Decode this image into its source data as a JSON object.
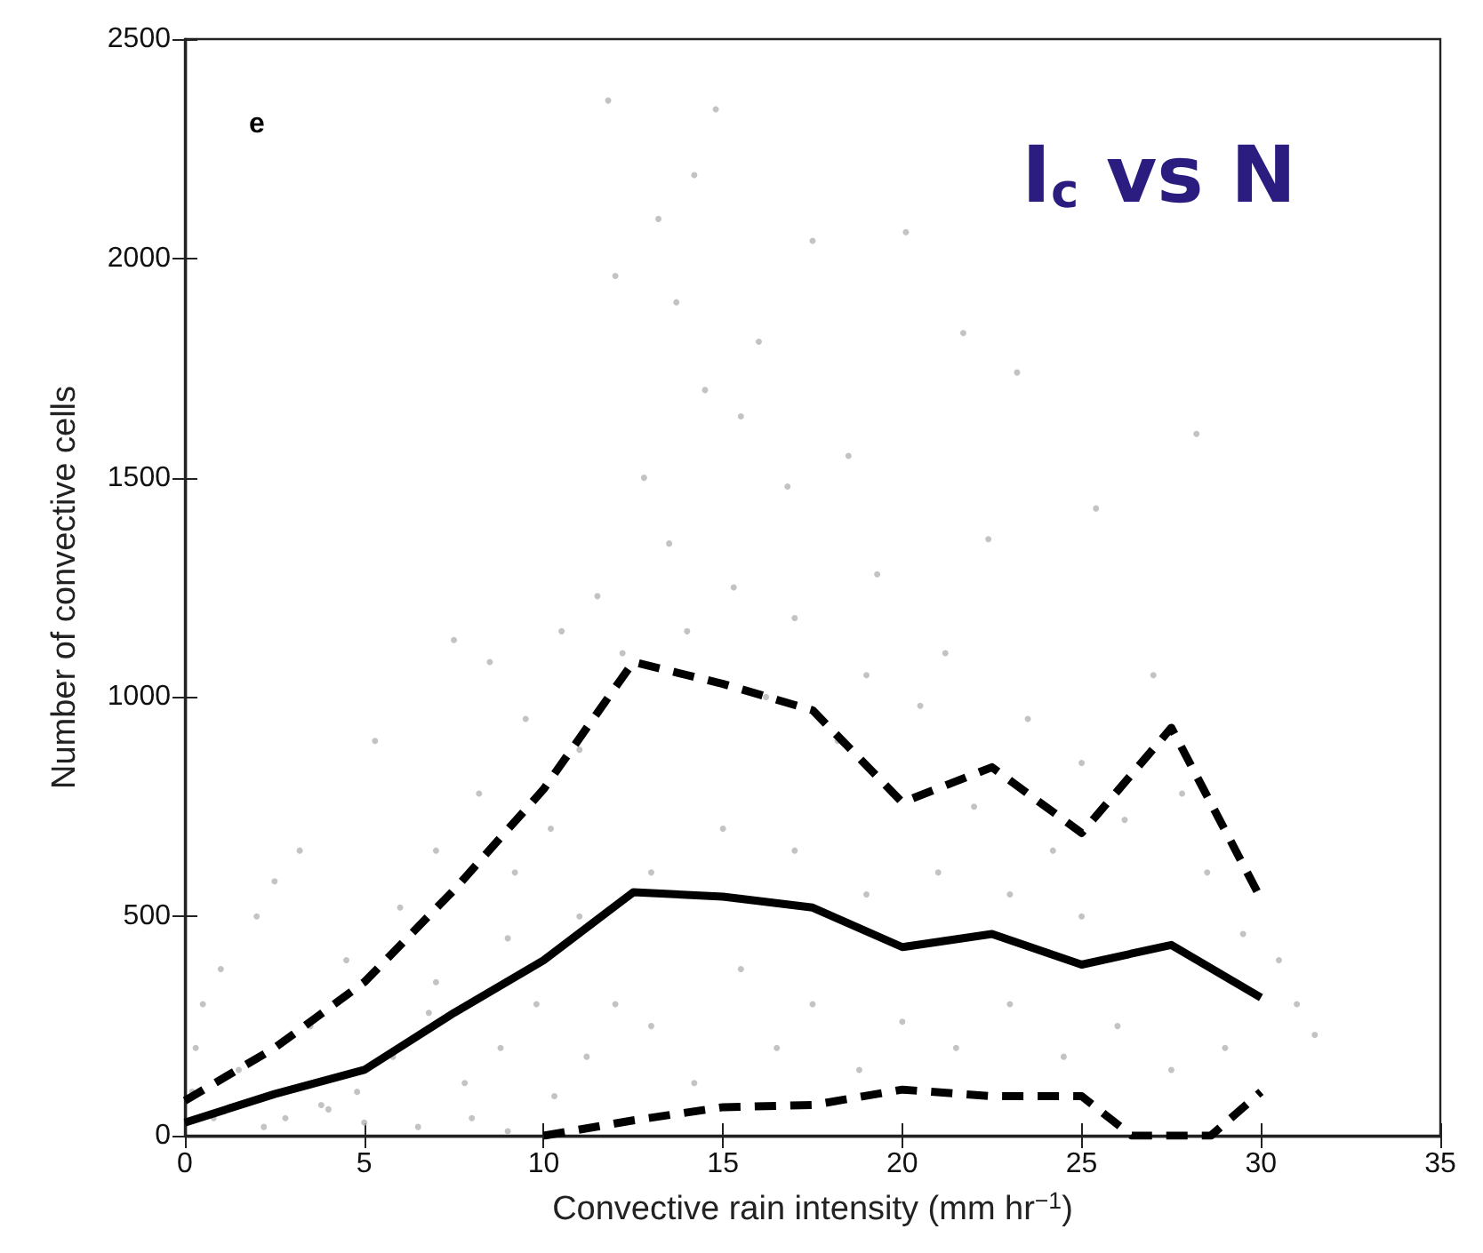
{
  "chart_data": {
    "type": "scatter",
    "title": "I$_{c}$ vs N",
    "xlabel": "Convective rain intensity (mm hr$^{−1}$)",
    "ylabel": "Number of convective cells",
    "annotations": [
      "e"
    ],
    "xlim": [
      0,
      35
    ],
    "xticks": [
      0,
      5,
      10,
      15,
      20,
      25,
      30,
      35
    ],
    "ylim": [
      0,
      2500
    ],
    "yticks": [
      0,
      500,
      1000,
      1500,
      2000,
      2500
    ],
    "grid": false,
    "series": [
      {
        "color": "#b4b4b4",
        "marker": "circle",
        "x": [
          11.8,
          14.8,
          14.2,
          13.2,
          12,
          20.1,
          17.5,
          21.7,
          23.2,
          28.2,
          25.4,
          13.7,
          16,
          14.5,
          15.5,
          18.5,
          16.8,
          19.3,
          22.4,
          12.8,
          11.5,
          10.5,
          8.5,
          7.5,
          9.5,
          5.3,
          3.2,
          2.5,
          2,
          1,
          0.5,
          0.3,
          0.2,
          1.5,
          0.8,
          2.2,
          4,
          5,
          6.5,
          8,
          9,
          3.5,
          4.5,
          6,
          7,
          8.2,
          9.2,
          10.2,
          11,
          12.2,
          13.5,
          14,
          15.3,
          16.2,
          17,
          18.2,
          19,
          20.5,
          21.2,
          22,
          23.5,
          24.2,
          25,
          26.2,
          27,
          27.8,
          28.5,
          29.5,
          30.5,
          31,
          31.5,
          29,
          27.5,
          26,
          24.5,
          23,
          21.5,
          20,
          18.8,
          17.5,
          16.5,
          15.5,
          14.2,
          13,
          12,
          11.2,
          10.3,
          9.8,
          8.8,
          7.8,
          6.8,
          5.8,
          4.8,
          3.8,
          2.8,
          13,
          15,
          17,
          19,
          21,
          23,
          25,
          11,
          9,
          7
        ],
        "values": [
          2360,
          2340,
          2190,
          2090,
          1960,
          2060,
          2040,
          1830,
          1740,
          1600,
          1430,
          1900,
          1810,
          1700,
          1640,
          1550,
          1480,
          1280,
          1360,
          1500,
          1230,
          1150,
          1080,
          1130,
          950,
          900,
          650,
          580,
          500,
          380,
          300,
          200,
          100,
          150,
          40,
          20,
          60,
          30,
          20,
          40,
          10,
          250,
          400,
          520,
          650,
          780,
          600,
          700,
          880,
          1100,
          1350,
          1150,
          1250,
          1000,
          1180,
          900,
          1050,
          980,
          1100,
          750,
          950,
          650,
          850,
          720,
          1050,
          780,
          600,
          460,
          400,
          300,
          230,
          200,
          150,
          250,
          180,
          300,
          200,
          260,
          150,
          300,
          200,
          380,
          120,
          250,
          300,
          180,
          90,
          300,
          200,
          120,
          280,
          180,
          100,
          70,
          40,
          600,
          700,
          650,
          550,
          600,
          550,
          500,
          500,
          450,
          350
        ]
      },
      {
        "type": "line",
        "color": "#000000",
        "line_style": "solid",
        "marker": "none",
        "x": [
          0,
          2.5,
          5,
          7.5,
          10,
          12.5,
          15,
          17.5,
          20,
          22.5,
          25,
          27.5,
          30
        ],
        "values": [
          30,
          95,
          150,
          280,
          400,
          555,
          545,
          520,
          430,
          460,
          390,
          435,
          315
        ]
      },
      {
        "type": "line",
        "color": "#000000",
        "line_style": "dashed",
        "marker": "none",
        "x": [
          0,
          2.5,
          5,
          7.5,
          10,
          12.5,
          15,
          17.5,
          20,
          22.5,
          25,
          27.5,
          30
        ],
        "values": [
          80,
          200,
          350,
          560,
          790,
          1080,
          1030,
          970,
          760,
          840,
          690,
          930,
          540
        ]
      },
      {
        "type": "line",
        "color": "#000000",
        "line_style": "dashed",
        "marker": "none",
        "x": [
          10,
          12.5,
          15,
          17.5,
          20,
          22.5,
          25,
          26.4,
          28.6,
          30
        ],
        "values": [
          0,
          35,
          65,
          70,
          105,
          90,
          90,
          0,
          0,
          100
        ]
      }
    ]
  }
}
